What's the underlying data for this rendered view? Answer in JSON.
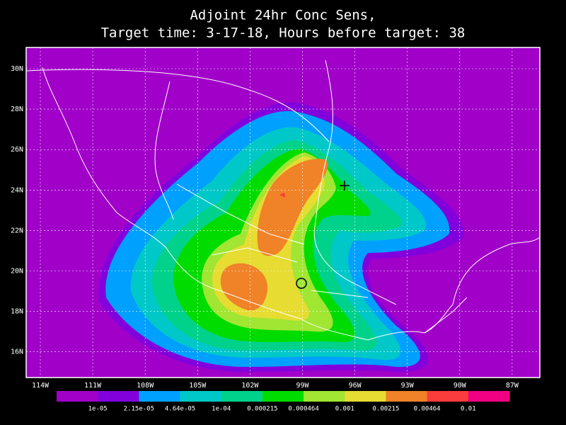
{
  "title": [
    "Adjoint 24hr Conc Sens,",
    "Target time: 3-17-18, Hours before target: 38"
  ],
  "map": {
    "lat_labels": [
      "30N",
      "28N",
      "26N",
      "24N",
      "22N",
      "20N",
      "18N",
      "16N"
    ],
    "lon_labels": [
      "114W",
      "111W",
      "108W",
      "105W",
      "102W",
      "99W",
      "96W",
      "93W",
      "90W",
      "87W"
    ],
    "grid": true
  },
  "colorbar": {
    "colors": [
      "#a000c8",
      "#8200dc",
      "#00a0ff",
      "#00c8c8",
      "#00d28c",
      "#00dc00",
      "#a0e632",
      "#e6dc32",
      "#f08228",
      "#fa3c3c",
      "#f00082"
    ],
    "labels": [
      "1e-05",
      "2.15e-05",
      "4.64e-05",
      "1e-04",
      "0.000215",
      "0.000464",
      "0.001",
      "0.00215",
      "0.00464",
      "0.01"
    ]
  }
}
